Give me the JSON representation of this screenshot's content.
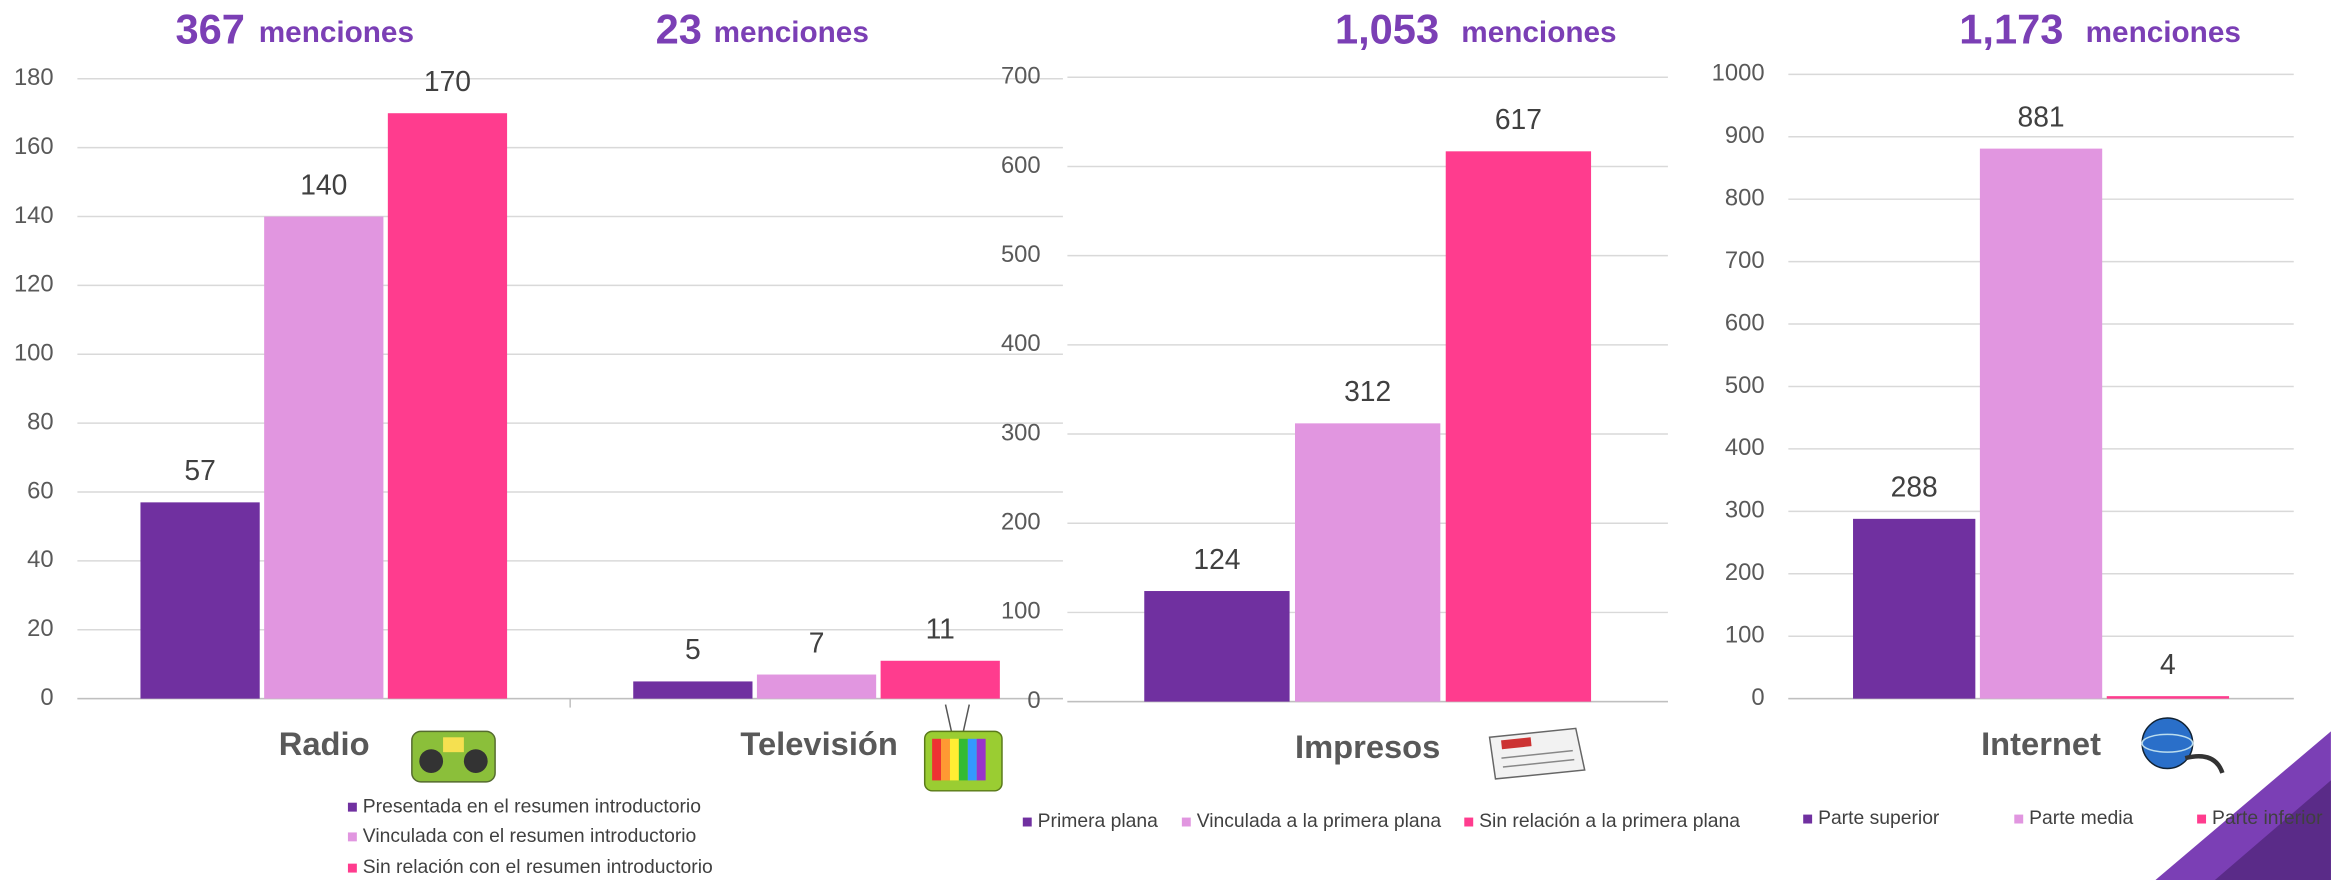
{
  "chart_data": [
    {
      "type": "bar",
      "annotations": [
        {
          "text": "367",
          "suffix": "menciones"
        },
        {
          "text": "23",
          "suffix": "menciones"
        }
      ],
      "categories": [
        "Radio",
        "Televisión"
      ],
      "series": [
        {
          "name": "Presentada en el resumen introductorio",
          "color": "#7030a0",
          "values": [
            57,
            5
          ]
        },
        {
          "name": "Vinculada con el resumen introductorio",
          "color": "#e196e0",
          "values": [
            140,
            7
          ]
        },
        {
          "name": "Sin relación con el resumen introductorio",
          "color": "#ff3c8e",
          "values": [
            170,
            11
          ]
        }
      ],
      "ylim": [
        0,
        180
      ],
      "yticks": [
        0,
        20,
        40,
        60,
        80,
        100,
        120,
        140,
        160,
        180
      ],
      "grid": true,
      "legend": "bottom"
    },
    {
      "type": "bar",
      "annotations": [
        {
          "text": "1,053",
          "suffix": "menciones"
        }
      ],
      "categories": [
        "Impresos"
      ],
      "series": [
        {
          "name": "Primera plana",
          "color": "#7030a0",
          "values": [
            124
          ]
        },
        {
          "name": "Vinculada a la primera plana",
          "color": "#e196e0",
          "values": [
            312
          ]
        },
        {
          "name": "Sin relación a la primera plana",
          "color": "#ff3c8e",
          "values": [
            617
          ]
        }
      ],
      "ylim": [
        0,
        700
      ],
      "yticks": [
        0,
        100,
        200,
        300,
        400,
        500,
        600,
        700
      ],
      "grid": true,
      "legend": "bottom"
    },
    {
      "type": "bar",
      "annotations": [
        {
          "text": "1,173",
          "suffix": "menciones"
        }
      ],
      "categories": [
        "Internet"
      ],
      "series": [
        {
          "name": "Parte superior",
          "color": "#7030a0",
          "values": [
            288
          ]
        },
        {
          "name": "Parte media",
          "color": "#e196e0",
          "values": [
            881
          ]
        },
        {
          "name": "Parte inferior",
          "color": "#ff3c8e",
          "values": [
            4
          ]
        }
      ],
      "ylim": [
        0,
        1000
      ],
      "yticks": [
        0,
        100,
        200,
        300,
        400,
        500,
        600,
        700,
        800,
        900,
        1000
      ],
      "grid": true,
      "legend": "bottom"
    }
  ]
}
